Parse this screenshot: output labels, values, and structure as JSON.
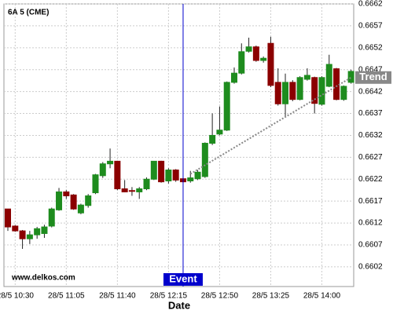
{
  "chart_data": {
    "type": "candlestick",
    "title": "6A 5 (CME)",
    "watermark": "www.delkos.com",
    "x_label": "Date",
    "categories": [
      null,
      "28/5 10:30",
      null,
      null,
      null,
      null,
      null,
      null,
      "28/5 11:05",
      null,
      null,
      null,
      null,
      null,
      null,
      "28/5 11:40",
      null,
      null,
      null,
      null,
      null,
      null,
      "28/5 12:15",
      null,
      null,
      null,
      null,
      null,
      null,
      "28/5 12:50",
      null,
      null,
      null,
      null,
      null,
      null,
      "28/5 13:25",
      null,
      null,
      null,
      null,
      null,
      null,
      "28/5 14:00",
      null,
      null,
      null,
      null
    ],
    "open": [
      0.66152,
      0.66113,
      0.66102,
      0.66084,
      0.66093,
      0.66096,
      0.66113,
      0.6615,
      0.66191,
      0.66184,
      0.66143,
      0.6616,
      0.66189,
      0.66228,
      0.66255,
      0.66261,
      0.66198,
      0.66194,
      0.66191,
      0.66198,
      0.6622,
      0.66261,
      0.66216,
      0.66241,
      0.66221,
      0.66216,
      0.66221,
      0.66226,
      0.66302,
      0.66323,
      0.66332,
      0.66441,
      0.66462,
      0.66512,
      0.66522,
      0.66491,
      0.6653,
      0.66441,
      0.66392,
      0.66441,
      0.66402,
      0.66448,
      0.66452,
      0.66391,
      0.66432,
      0.66472,
      0.66402,
      0.66441
    ],
    "high": [
      0.66152,
      0.66115,
      0.66104,
      0.66102,
      0.66111,
      0.66116,
      0.66155,
      0.662,
      0.66195,
      0.66186,
      0.66164,
      0.66186,
      0.66232,
      0.66259,
      0.6629,
      0.66262,
      0.66218,
      0.66202,
      0.66202,
      0.66224,
      0.66261,
      0.66262,
      0.66245,
      0.66243,
      0.66223,
      0.66239,
      0.66241,
      0.66304,
      0.6637,
      0.66386,
      0.66443,
      0.66475,
      0.6653,
      0.66543,
      0.66525,
      0.665,
      0.66545,
      0.66473,
      0.66461,
      0.66446,
      0.66455,
      0.66473,
      0.66454,
      0.66455,
      0.66504,
      0.66474,
      0.66434,
      0.6647
    ],
    "low": [
      0.66102,
      0.661,
      0.66061,
      0.66072,
      0.66084,
      0.66086,
      0.6611,
      0.66148,
      0.66175,
      0.6615,
      0.6614,
      0.66155,
      0.66186,
      0.66223,
      0.66245,
      0.66195,
      0.6619,
      0.66182,
      0.66175,
      0.66195,
      0.66218,
      0.66212,
      0.6621,
      0.66214,
      0.66212,
      0.66212,
      0.66218,
      0.66223,
      0.66298,
      0.6632,
      0.6633,
      0.66438,
      0.66459,
      0.66509,
      0.66488,
      0.66486,
      0.6643,
      0.66388,
      0.66361,
      0.66398,
      0.664,
      0.66445,
      0.6637,
      0.66388,
      0.6643,
      0.664,
      0.66399,
      0.66438
    ],
    "close": [
      0.66111,
      0.66102,
      0.66084,
      0.66093,
      0.66107,
      0.66111,
      0.66152,
      0.66191,
      0.66182,
      0.66152,
      0.66161,
      0.66182,
      0.6623,
      0.66255,
      0.66261,
      0.66198,
      0.66191,
      0.66193,
      0.66198,
      0.6622,
      0.66261,
      0.66214,
      0.66241,
      0.66218,
      0.66214,
      0.66223,
      0.66236,
      0.66302,
      0.6632,
      0.66332,
      0.66441,
      0.66462,
      0.66511,
      0.66522,
      0.66491,
      0.66496,
      0.66434,
      0.66392,
      0.66441,
      0.66402,
      0.66452,
      0.66457,
      0.66393,
      0.66452,
      0.66482,
      0.66402,
      0.66432,
      0.66466
    ],
    "up_color": "#1e8c1e",
    "down_color": "#8b0000",
    "ylim": [
      0.65975,
      0.6662
    ],
    "yticks": [
      0.6602,
      0.6607,
      0.6612,
      0.6617,
      0.6622,
      0.6627,
      0.6632,
      0.6637,
      0.6642,
      0.6647,
      0.6652,
      0.6657,
      0.6662
    ],
    "grid": true,
    "event": {
      "label": "Event",
      "color": "#0000cc"
    },
    "trend": {
      "label": "Trend",
      "values": [
        0.66232,
        0.66452
      ],
      "color": "#888888"
    }
  }
}
